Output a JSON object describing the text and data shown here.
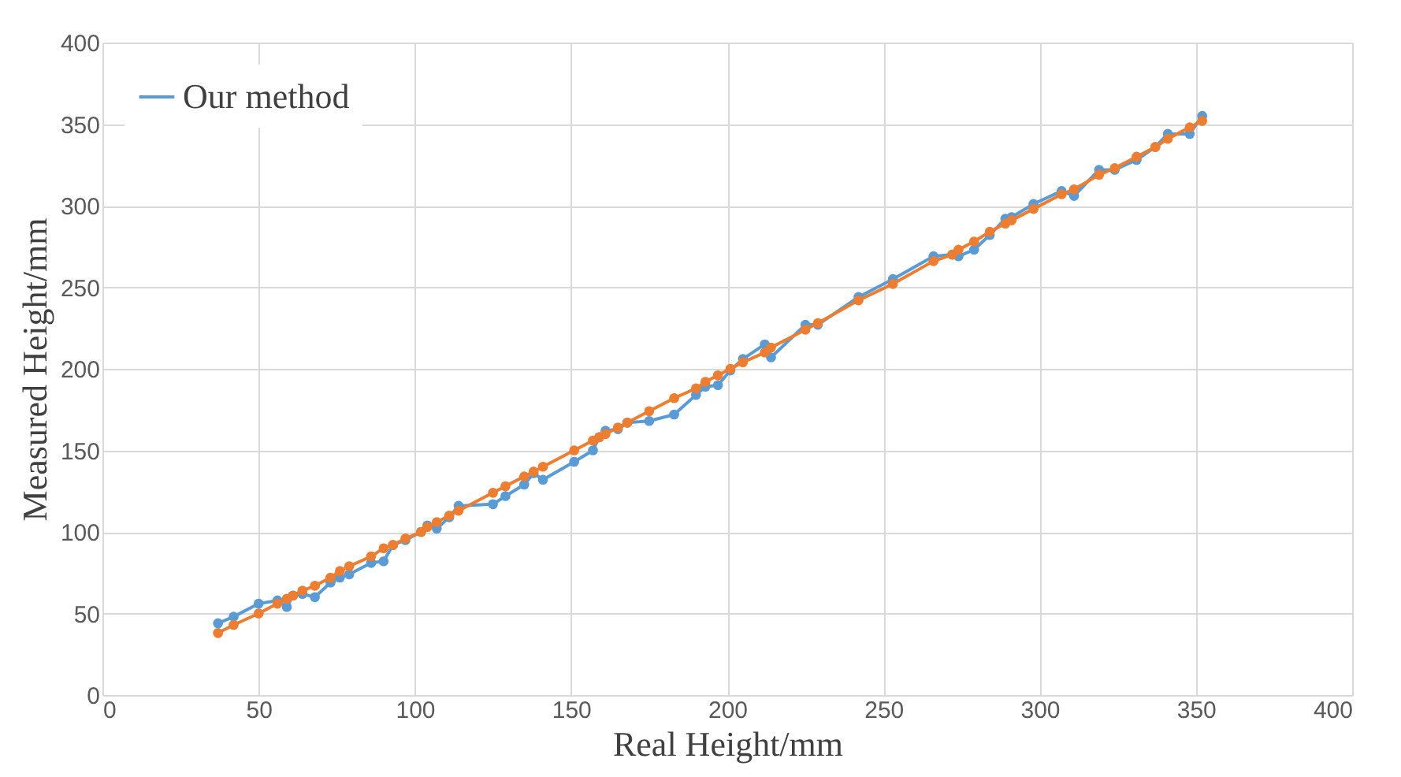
{
  "chart_data": {
    "type": "line",
    "xlabel": "Real Height/mm",
    "ylabel": "Measured Height/mm",
    "xlim": [
      0,
      400
    ],
    "xticks": [
      0,
      50,
      100,
      150,
      200,
      250,
      300,
      350,
      400
    ],
    "ylim": [
      0,
      400
    ],
    "yticks": [
      0,
      50,
      100,
      150,
      200,
      250,
      300,
      350,
      400
    ],
    "grid": true,
    "legend": "top left",
    "marker": "circle",
    "line_style": "solid",
    "x": [
      37,
      42,
      50,
      56,
      59,
      61,
      64,
      68,
      73,
      76,
      79,
      86,
      90,
      93,
      97,
      102,
      104,
      107,
      111,
      114,
      125,
      129,
      135,
      138,
      141,
      151,
      157,
      159,
      161,
      165,
      168,
      175,
      183,
      190,
      193,
      197,
      201,
      205,
      212,
      214,
      225,
      229,
      242,
      253,
      266,
      272,
      274,
      279,
      284,
      289,
      291,
      298,
      307,
      311,
      319,
      324,
      331,
      337,
      341,
      348,
      352
    ],
    "series": [
      {
        "name": "Our method",
        "color": "#5b9bd5",
        "values": [
          44,
          48,
          56,
          58,
          54,
          61,
          62,
          60,
          69,
          72,
          74,
          81,
          82,
          92,
          95,
          100,
          104,
          102,
          109,
          116,
          117,
          122,
          129,
          136,
          132,
          143,
          150,
          158,
          162,
          163,
          167,
          168,
          172,
          184,
          189,
          190,
          199,
          206,
          215,
          207,
          227,
          227,
          244,
          255,
          269,
          270,
          269,
          273,
          282,
          292,
          293,
          301,
          309,
          306,
          322,
          322,
          328,
          336,
          344,
          344,
          355
        ]
      },
      {
        "color": "#ed7d31",
        "values": [
          38,
          43,
          50,
          56,
          59,
          61,
          64,
          67,
          72,
          76,
          79,
          85,
          90,
          92,
          96,
          100,
          103,
          106,
          110,
          113,
          124,
          128,
          134,
          137,
          140,
          150,
          156,
          158,
          160,
          164,
          167,
          174,
          182,
          188,
          192,
          196,
          200,
          204,
          210,
          213,
          224,
          228,
          242,
          252,
          266,
          270,
          273,
          278,
          284,
          289,
          291,
          298,
          307,
          310,
          319,
          323,
          330,
          336,
          341,
          348,
          352
        ]
      }
    ]
  }
}
